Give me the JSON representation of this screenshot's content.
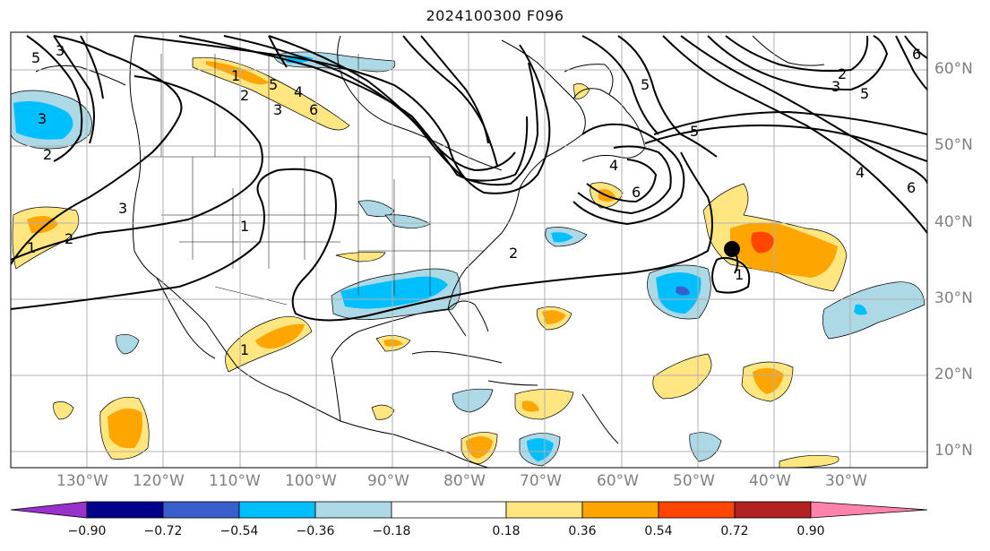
{
  "title": "2024100300 F096",
  "longitude_labels": [
    "130°W",
    "120°W",
    "110°W",
    "100°W",
    "90°W",
    "80°W",
    "70°W",
    "60°W",
    "50°W",
    "40°W",
    "30°W"
  ],
  "latitude_labels": [
    "60°N",
    "50°N",
    "40°N",
    "30°N",
    "20°N",
    "10°N"
  ],
  "colorbar": {
    "ticks": [
      "−0.90",
      "−0.72",
      "−0.54",
      "−0.36",
      "−0.18",
      "0.18",
      "0.36",
      "0.54",
      "0.72",
      "0.90"
    ],
    "colors": [
      "#9932cc",
      "#00008b",
      "#3a5fcd",
      "#00bfff",
      "#add8e6",
      "#ffffff",
      "#ffe680",
      "#ffa500",
      "#ff4500",
      "#b22222",
      "#ff82ab"
    ]
  },
  "contour_labels": [
    "5",
    "3",
    "2",
    "1",
    "3",
    "1",
    "2",
    "1",
    "6",
    "4",
    "3",
    "2",
    "3",
    "5",
    "6",
    "4",
    "5",
    "2",
    "6",
    "5",
    "1",
    "2",
    "3",
    "5",
    "4",
    "6",
    "1"
  ],
  "marker": {
    "type": "storm-center",
    "color": "#000000"
  }
}
